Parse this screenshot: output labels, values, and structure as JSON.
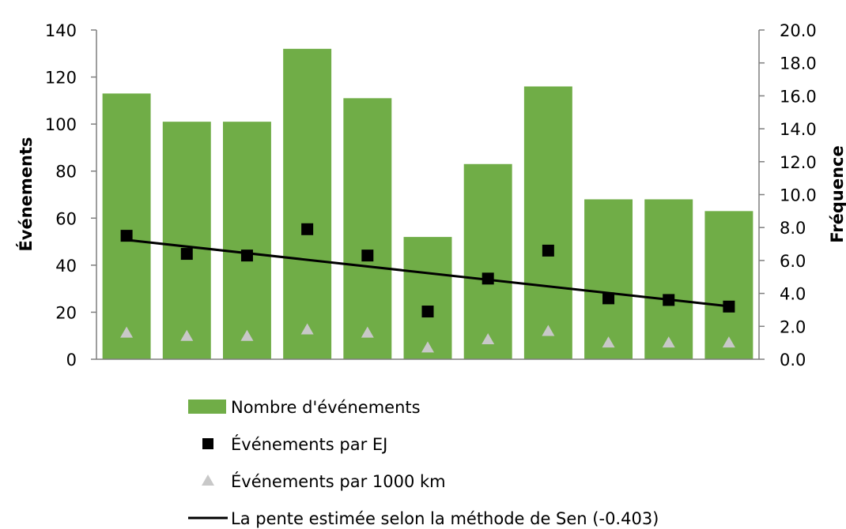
{
  "chart_data": {
    "type": "bar",
    "categories": [
      "",
      "",
      "",
      "",
      "",
      "",
      "",
      "",
      "",
      "",
      ""
    ],
    "series": [
      {
        "name": "Nombre d'événements",
        "type": "bar",
        "axis": "left",
        "values": [
          113,
          101,
          101,
          132,
          111,
          52,
          83,
          116,
          68,
          68,
          63
        ]
      },
      {
        "name": "Événements par EJ",
        "type": "scatter",
        "marker": "square",
        "axis": "right",
        "values": [
          7.5,
          6.4,
          6.3,
          7.9,
          6.3,
          2.9,
          4.9,
          6.6,
          3.7,
          3.6,
          3.2
        ]
      },
      {
        "name": "Événements par 1000 km",
        "type": "scatter",
        "marker": "triangle",
        "axis": "right",
        "values": [
          1.6,
          1.4,
          1.4,
          1.8,
          1.6,
          0.7,
          1.2,
          1.7,
          1.0,
          1.0,
          1.0
        ]
      },
      {
        "name": "La pente estimée selon la méthode de Sen (-0.403)",
        "type": "line",
        "axis": "right",
        "start": 7.25,
        "end": 3.22
      }
    ],
    "ylabel": "Événements",
    "y2label": "Fréquence",
    "ylim": [
      0,
      140
    ],
    "yticks": [
      "0",
      "20",
      "40",
      "60",
      "80",
      "100",
      "120",
      "140"
    ],
    "y2lim": [
      0,
      20
    ],
    "y2ticks": [
      "0.0",
      "2.0",
      "4.0",
      "6.0",
      "8.0",
      "10.0",
      "12.0",
      "14.0",
      "16.0",
      "18.0",
      "20.0"
    ],
    "grid": false,
    "legend_position": "bottom",
    "colors": {
      "bar": "#70ad47",
      "square": "#000000",
      "triangle": "#c8c8c8",
      "line": "#000000"
    }
  }
}
